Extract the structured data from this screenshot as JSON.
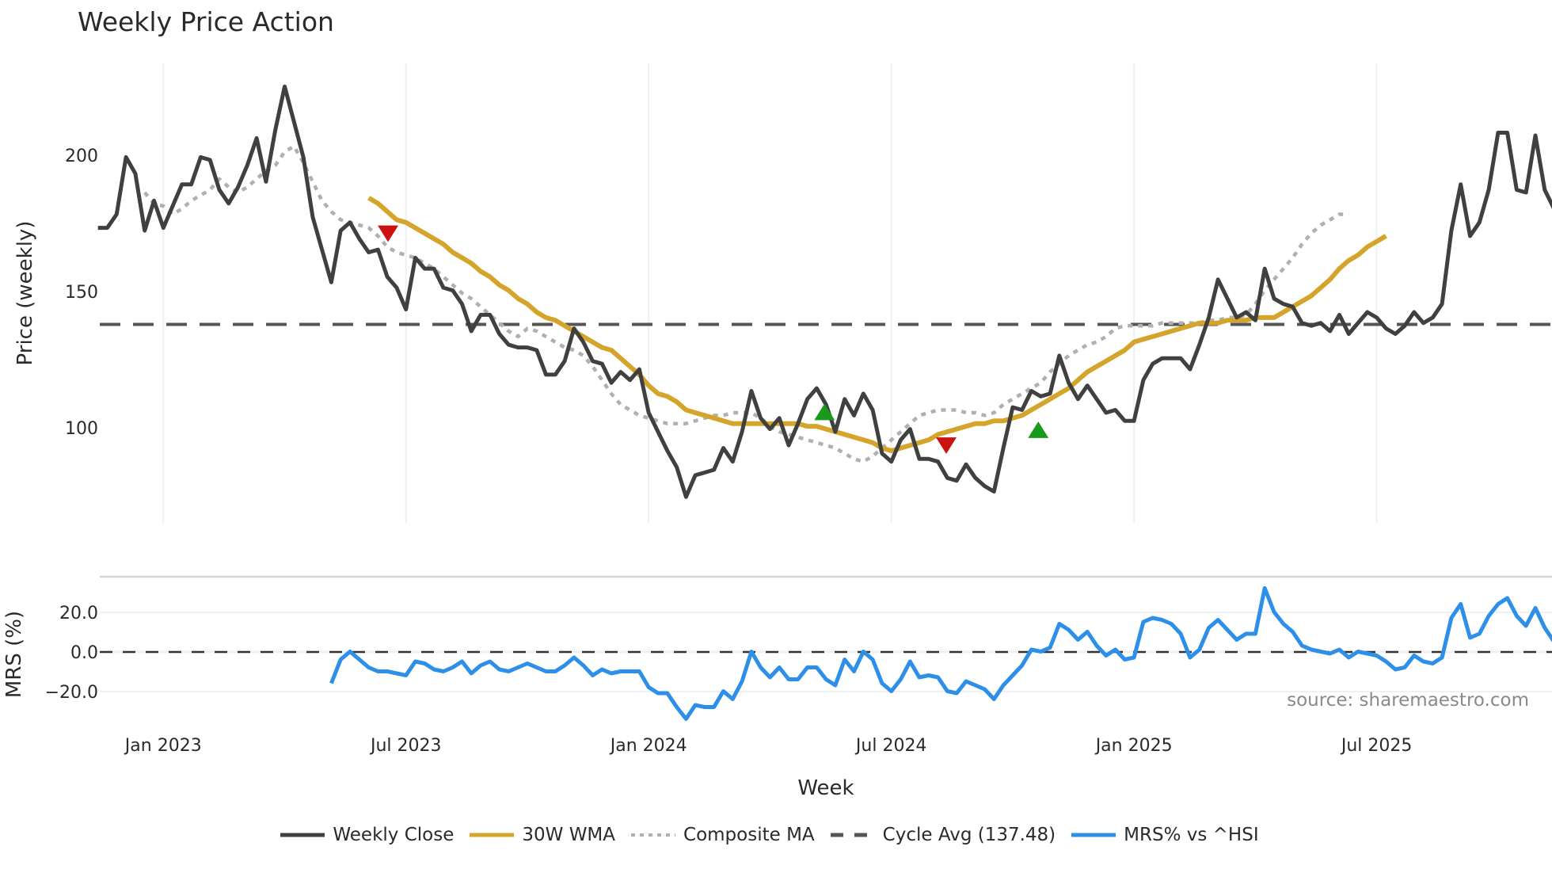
{
  "title": "Weekly Price Action",
  "source_note": "source: sharemaestro.com",
  "colors": {
    "weekly_close": "#404040",
    "wma30": "#d4a52a",
    "composite_ma": "#b0b0b0",
    "cycle_avg": "#555555",
    "mrs": "#2e8fe8",
    "buy_marker": "#1a9a1a",
    "sell_marker": "#cc1111",
    "grid": "#eef0f4"
  },
  "legend": [
    {
      "key": "weekly_close",
      "label": "Weekly Close",
      "style": "solid"
    },
    {
      "key": "wma30",
      "label": "30W WMA",
      "style": "solid"
    },
    {
      "key": "composite_ma",
      "label": "Composite MA",
      "style": "dotted"
    },
    {
      "key": "cycle_avg",
      "label": "Cycle Avg (137.48)",
      "style": "dashed"
    },
    {
      "key": "mrs",
      "label": "MRS% vs ^HSI",
      "style": "solid"
    }
  ],
  "chart_data": [
    {
      "type": "line",
      "title": "Weekly Price Action",
      "xlabel": "Week",
      "ylabel": "Price (weekly)",
      "x_tick_labels": [
        "Jan 2023",
        "Jul 2023",
        "Jan 2024",
        "Jul 2024",
        "Jan 2025",
        "Jul 2025"
      ],
      "y_ticks": [
        100,
        150,
        200
      ],
      "ylim": [
        65,
        230
      ],
      "grid": "vertical only",
      "reference_lines": [
        {
          "name": "Cycle Avg",
          "value": 137.48,
          "style": "dashed"
        }
      ],
      "series": [
        {
          "name": "Weekly Close",
          "start_week_offset": -7,
          "values": [
            173,
            173,
            178,
            199,
            193,
            172,
            183,
            173,
            181,
            189,
            189,
            199,
            198,
            187,
            182,
            188,
            196,
            206,
            190,
            209,
            225,
            212,
            199,
            177,
            165,
            153,
            172,
            175,
            169,
            164,
            165,
            155,
            151,
            143,
            162,
            158,
            158,
            151,
            150,
            145,
            135,
            141,
            141,
            134,
            130,
            129,
            129,
            128,
            119,
            119,
            124,
            136,
            131,
            124,
            123,
            116,
            120,
            117,
            121,
            105,
            98,
            91,
            85,
            74,
            82,
            83,
            84,
            92,
            87,
            98,
            113,
            103,
            99,
            103,
            93,
            101,
            110,
            114,
            108,
            98,
            110,
            104,
            112,
            106,
            90,
            87,
            95,
            99,
            88,
            88,
            87,
            81,
            80,
            86,
            81,
            78,
            76,
            92,
            107,
            106,
            113,
            111,
            112,
            126,
            116,
            110,
            115,
            110,
            105,
            106,
            102,
            102,
            117,
            123,
            125,
            125,
            125,
            121,
            130,
            140,
            154,
            147,
            140,
            142,
            139,
            158,
            147,
            145,
            144,
            138,
            137,
            138,
            135,
            141,
            134,
            138,
            142,
            140,
            136,
            134,
            137,
            142,
            138,
            140,
            145,
            172,
            189,
            170,
            175,
            187,
            208,
            208,
            187,
            186,
            207,
            187,
            180
          ]
        },
        {
          "name": "30W WMA",
          "start_week_offset": 22,
          "values": [
            184,
            182,
            179,
            176,
            175,
            173,
            171,
            169,
            167,
            164,
            162,
            160,
            157,
            155,
            152,
            150,
            147,
            145,
            142,
            140,
            139,
            137,
            135,
            133,
            131,
            129,
            128,
            125,
            122,
            119,
            115,
            112,
            111,
            109,
            106,
            105,
            104,
            103,
            102,
            101,
            101,
            101,
            101,
            101,
            101,
            101,
            101,
            100,
            100,
            99,
            98,
            97,
            96,
            95,
            94,
            92,
            91,
            92,
            93,
            94,
            95,
            97,
            98,
            99,
            100,
            101,
            101,
            102,
            102,
            103,
            104,
            106,
            108,
            110,
            112,
            114,
            117,
            120,
            122,
            124,
            126,
            128,
            131,
            132,
            133,
            134,
            135,
            136,
            137,
            138,
            138,
            138,
            139,
            139,
            139,
            140,
            140,
            140,
            142,
            144,
            146,
            148,
            151,
            154,
            158,
            161,
            163,
            166,
            168,
            170
          ]
        },
        {
          "name": "Composite MA",
          "start_week_offset": -2,
          "values": [
            186,
            182,
            181,
            178,
            180,
            183,
            185,
            187,
            191,
            188,
            186,
            188,
            191,
            194,
            196,
            201,
            203,
            197,
            190,
            183,
            179,
            176,
            175,
            174,
            173,
            170,
            166,
            164,
            163,
            162,
            160,
            158,
            155,
            152,
            149,
            147,
            144,
            141,
            138,
            135,
            133,
            136,
            135,
            133,
            131,
            129,
            128,
            126,
            122,
            117,
            112,
            108,
            106,
            104,
            103,
            102,
            101,
            101,
            101,
            102,
            103,
            104,
            104,
            105,
            105,
            105,
            103,
            100,
            98,
            97,
            96,
            95,
            94,
            93,
            92,
            90,
            88,
            87,
            89,
            92,
            95,
            98,
            101,
            104,
            105,
            106,
            106,
            106,
            105,
            105,
            104,
            105,
            108,
            110,
            112,
            114,
            116,
            120,
            123,
            126,
            128,
            130,
            131,
            133,
            136,
            137,
            137,
            137,
            137,
            138,
            138,
            138,
            138,
            138,
            139,
            139,
            140,
            140,
            141,
            145,
            150,
            154,
            158,
            162,
            167,
            171,
            174,
            176,
            178,
            178
          ]
        },
        {
          "name": "Cycle Avg (137.48)",
          "constant": 137.48
        }
      ],
      "markers": [
        {
          "type": "sell",
          "shape": "triangle-down",
          "x_label_approx": "Jun 2023",
          "y": 172
        },
        {
          "type": "buy",
          "shape": "triangle-up",
          "x_label_approx": "Apr 2024",
          "y": 105
        },
        {
          "type": "sell",
          "shape": "triangle-down",
          "x_label_approx": "Aug 2024",
          "y": 94
        },
        {
          "type": "buy",
          "shape": "triangle-up",
          "x_label_approx": "Oct 2024",
          "y": 98
        }
      ]
    },
    {
      "type": "line",
      "title": "",
      "xlabel": "Week",
      "ylabel": "MRS (%)",
      "x_tick_labels": [
        "Jan 2023",
        "Jul 2023",
        "Jan 2024",
        "Jul 2024",
        "Jan 2025",
        "Jul 2025"
      ],
      "y_ticks": [
        -20.0,
        0.0,
        20.0
      ],
      "y_tick_labels": [
        "−20.0",
        "0.0",
        "20.0"
      ],
      "ylim": [
        -38,
        38
      ],
      "grid": "horizontal",
      "reference_lines": [
        {
          "name": "zero",
          "value": 0,
          "style": "dashed"
        }
      ],
      "series": [
        {
          "name": "MRS% vs ^HSI",
          "start_week_offset": 18,
          "values": [
            -16,
            -4,
            0,
            -4,
            -8,
            -10,
            -10,
            -11,
            -12,
            -5,
            -6,
            -9,
            -10,
            -8,
            -5,
            -11,
            -7,
            -5,
            -9,
            -10,
            -8,
            -6,
            -8,
            -10,
            -10,
            -7,
            -3,
            -7,
            -12,
            -9,
            -11,
            -10,
            -10,
            -10,
            -18,
            -21,
            -21,
            -28,
            -34,
            -27,
            -28,
            -28,
            -20,
            -24,
            -15,
            0,
            -8,
            -13,
            -8,
            -14,
            -14,
            -8,
            -8,
            -14,
            -17,
            -4,
            -10,
            0,
            -4,
            -16,
            -20,
            -14,
            -5,
            -13,
            -12,
            -13,
            -20,
            -21,
            -15,
            -17,
            -19,
            -24,
            -17,
            -12,
            -7,
            1,
            0,
            2,
            14,
            11,
            6,
            10,
            3,
            -2,
            1,
            -4,
            -3,
            15,
            17,
            16,
            14,
            9,
            -3,
            1,
            12,
            16,
            11,
            6,
            9,
            9,
            32,
            20,
            14,
            10,
            3,
            1,
            0,
            -1,
            1,
            -3,
            0,
            -1,
            -2,
            -5,
            -9,
            -8,
            -2,
            -5,
            -6,
            -3,
            17,
            24,
            7,
            9,
            18,
            24,
            27,
            18,
            13,
            22,
            12,
            5
          ]
        }
      ]
    }
  ],
  "main_panel": {
    "y_tick_labels": [
      "200",
      "150",
      "100"
    ],
    "y_axis_title": "Price (weekly)"
  },
  "mrs_panel": {
    "y_tick_labels": [
      "20.0",
      "0.0",
      "−20.0"
    ],
    "y_axis_title": "MRS (%)"
  },
  "x_axis": {
    "tick_labels": [
      "Jan 2023",
      "Jul 2023",
      "Jan 2024",
      "Jul 2024",
      "Jan 2025",
      "Jul 2025"
    ],
    "title": "Week"
  }
}
